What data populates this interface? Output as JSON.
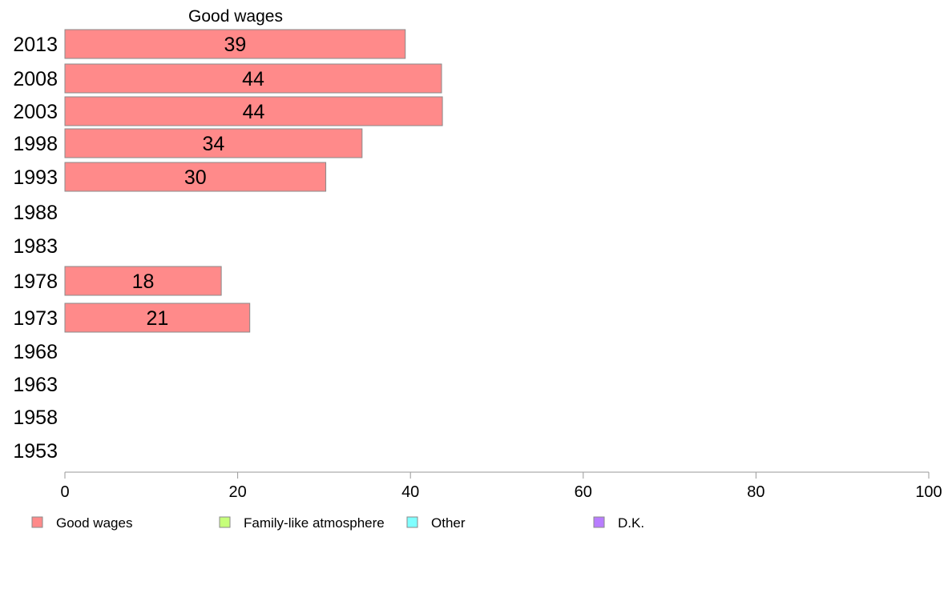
{
  "chart_data": {
    "type": "bar",
    "orientation": "horizontal",
    "title": "Good wages",
    "categories": [
      "2013",
      "2008",
      "2003",
      "1998",
      "1993",
      "1988",
      "1983",
      "1978",
      "1973",
      "1968",
      "1963",
      "1958",
      "1953"
    ],
    "series": [
      {
        "name": "Good wages",
        "color": "#ff8a8a",
        "values": [
          39.4,
          43.6,
          43.7,
          34.4,
          30.2,
          null,
          null,
          18.1,
          21.4,
          null,
          null,
          null,
          null
        ],
        "labels": [
          "39",
          "44",
          "44",
          "34",
          "30",
          "",
          "",
          "18",
          "21",
          "",
          "",
          "",
          ""
        ]
      }
    ],
    "xlim": [
      0,
      100
    ],
    "xticks": [
      0,
      20,
      40,
      60,
      80,
      100
    ],
    "xtick_labels": [
      "0",
      "20",
      "40",
      "60",
      "80",
      "100"
    ],
    "grid": false,
    "legend": {
      "placement": "bottom",
      "entries": [
        {
          "label": "Good wages",
          "color": "#ff8a8a"
        },
        {
          "label": "Family-like atmosphere",
          "color": "#c6ff7a"
        },
        {
          "label": "Other",
          "color": "#80ffff"
        },
        {
          "label": "D.K.",
          "color": "#b87cff"
        }
      ]
    }
  }
}
